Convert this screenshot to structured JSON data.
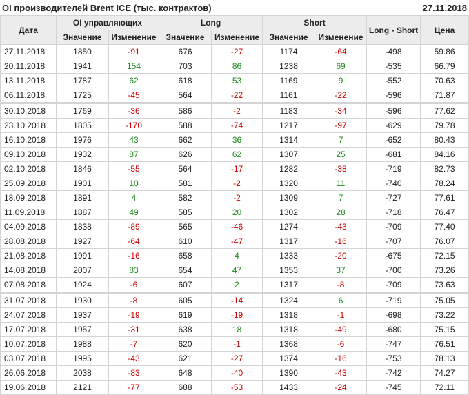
{
  "title": "OI производителей Brent ICE (тыс. контрактов)",
  "date": "27.11.2018",
  "colors": {
    "positive": "#1f8a1f",
    "negative": "#cc0000",
    "header_bg": "#ececec"
  },
  "headers": {
    "date": "Дата",
    "oi": "OI управляющих",
    "long": "Long",
    "short": "Short",
    "ls": "Long - Short",
    "price": "Цена",
    "value": "Значение",
    "change": "Изменение"
  },
  "rows": [
    [
      "27.11.2018",
      "1850",
      "-91",
      "676",
      "-27",
      "1174",
      "-64",
      "-498",
      "59.86"
    ],
    [
      "20.11.2018",
      "1941",
      "154",
      "703",
      "86",
      "1238",
      "69",
      "-535",
      "66.79"
    ],
    [
      "13.11.2018",
      "1787",
      "62",
      "618",
      "53",
      "1169",
      "9",
      "-552",
      "70.63"
    ],
    [
      "06.11.2018",
      "1725",
      "-45",
      "564",
      "-22",
      "1161",
      "-22",
      "-596",
      "71.87"
    ],
    [
      "30.10.2018",
      "1769",
      "-36",
      "586",
      "-2",
      "1183",
      "-34",
      "-596",
      "77.62"
    ],
    [
      "23.10.2018",
      "1805",
      "-170",
      "588",
      "-74",
      "1217",
      "-97",
      "-629",
      "79.78"
    ],
    [
      "16.10.2018",
      "1976",
      "43",
      "662",
      "36",
      "1314",
      "7",
      "-652",
      "80.43"
    ],
    [
      "09.10.2018",
      "1932",
      "87",
      "626",
      "62",
      "1307",
      "25",
      "-681",
      "84.16"
    ],
    [
      "02.10.2018",
      "1846",
      "-55",
      "564",
      "-17",
      "1282",
      "-38",
      "-719",
      "82.73"
    ],
    [
      "25.09.2018",
      "1901",
      "10",
      "581",
      "-2",
      "1320",
      "11",
      "-740",
      "78.24"
    ],
    [
      "18.09.2018",
      "1891",
      "4",
      "582",
      "-2",
      "1309",
      "7",
      "-727",
      "77.61"
    ],
    [
      "11.09.2018",
      "1887",
      "49",
      "585",
      "20",
      "1302",
      "28",
      "-718",
      "76.47"
    ],
    [
      "04.09.2018",
      "1838",
      "-89",
      "565",
      "-46",
      "1274",
      "-43",
      "-709",
      "77.40"
    ],
    [
      "28.08.2018",
      "1927",
      "-64",
      "610",
      "-47",
      "1317",
      "-16",
      "-707",
      "76.07"
    ],
    [
      "21.08.2018",
      "1991",
      "-16",
      "658",
      "4",
      "1333",
      "-20",
      "-675",
      "72.15"
    ],
    [
      "14.08.2018",
      "2007",
      "83",
      "654",
      "47",
      "1353",
      "37",
      "-700",
      "73.26"
    ],
    [
      "07.08.2018",
      "1924",
      "-6",
      "607",
      "2",
      "1317",
      "-8",
      "-709",
      "73.63"
    ],
    [
      "31.07.2018",
      "1930",
      "-8",
      "605",
      "-14",
      "1324",
      "6",
      "-719",
      "75.05"
    ],
    [
      "24.07.2018",
      "1937",
      "-19",
      "619",
      "-19",
      "1318",
      "-1",
      "-698",
      "73.22"
    ],
    [
      "17.07.2018",
      "1957",
      "-31",
      "638",
      "18",
      "1318",
      "-49",
      "-680",
      "75.15"
    ],
    [
      "10.07.2018",
      "1988",
      "-7",
      "620",
      "-1",
      "1368",
      "-6",
      "-747",
      "76.51"
    ],
    [
      "03.07.2018",
      "1995",
      "-43",
      "621",
      "-27",
      "1374",
      "-16",
      "-753",
      "78.13"
    ],
    [
      "26.06.2018",
      "2038",
      "-83",
      "648",
      "-40",
      "1390",
      "-43",
      "-742",
      "74.27"
    ],
    [
      "19.06.2018",
      "2121",
      "-77",
      "688",
      "-53",
      "1433",
      "-24",
      "-745",
      "72.11"
    ]
  ],
  "month_separators": [
    "30.10.2018",
    "31.07.2018"
  ]
}
